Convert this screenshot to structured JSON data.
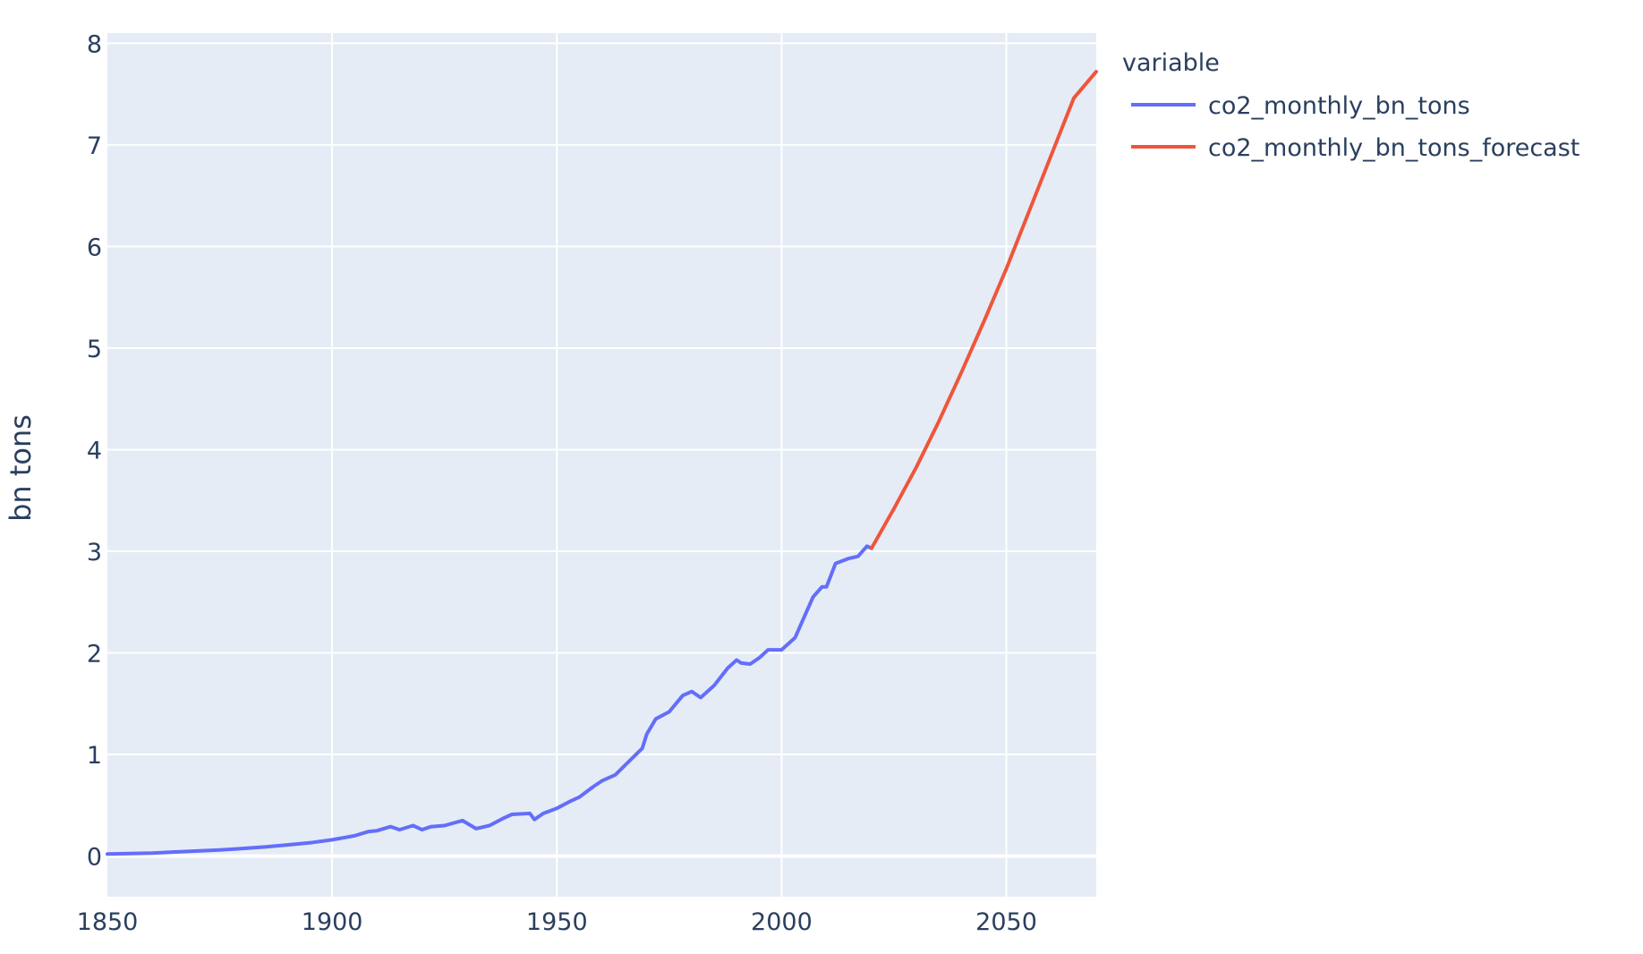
{
  "chart_data": {
    "type": "line",
    "title": "",
    "xlabel": "",
    "ylabel": "bn tons",
    "xlim": [
      1850,
      2070
    ],
    "ylim": [
      -0.4,
      8.1
    ],
    "x_ticks": [
      1850,
      1900,
      1950,
      2000,
      2050
    ],
    "y_ticks": [
      0,
      1,
      2,
      3,
      4,
      5,
      6,
      7,
      8
    ],
    "grid": true,
    "plot_background": "#E5ECF6",
    "legend": {
      "title": "variable",
      "position": "right"
    },
    "series": [
      {
        "name": "co2_monthly_bn_tons",
        "color": "#636EFA",
        "x": [
          1850,
          1855,
          1860,
          1865,
          1870,
          1875,
          1880,
          1885,
          1890,
          1895,
          1900,
          1905,
          1908,
          1910,
          1913,
          1915,
          1918,
          1920,
          1922,
          1925,
          1929,
          1932,
          1935,
          1938,
          1940,
          1944,
          1945,
          1947,
          1950,
          1953,
          1955,
          1958,
          1960,
          1963,
          1966,
          1969,
          1970,
          1972,
          1975,
          1978,
          1980,
          1982,
          1985,
          1988,
          1990,
          1991,
          1993,
          1995,
          1997,
          2000,
          2003,
          2005,
          2007,
          2009,
          2010,
          2012,
          2015,
          2017,
          2019,
          2020
        ],
        "y": [
          0.02,
          0.025,
          0.03,
          0.04,
          0.05,
          0.06,
          0.075,
          0.09,
          0.11,
          0.13,
          0.16,
          0.2,
          0.24,
          0.25,
          0.29,
          0.26,
          0.3,
          0.26,
          0.29,
          0.3,
          0.35,
          0.27,
          0.3,
          0.37,
          0.41,
          0.42,
          0.36,
          0.42,
          0.47,
          0.54,
          0.58,
          0.68,
          0.74,
          0.8,
          0.93,
          1.06,
          1.2,
          1.35,
          1.42,
          1.58,
          1.62,
          1.56,
          1.68,
          1.85,
          1.93,
          1.9,
          1.89,
          1.95,
          2.03,
          2.03,
          2.15,
          2.35,
          2.55,
          2.65,
          2.65,
          2.88,
          2.93,
          2.95,
          3.05,
          3.03
        ]
      },
      {
        "name": "co2_monthly_bn_tons_forecast",
        "color": "#EF553B",
        "x": [
          2020,
          2025,
          2030,
          2035,
          2040,
          2045,
          2050,
          2055,
          2060,
          2065,
          2070
        ],
        "y": [
          3.03,
          3.42,
          3.83,
          4.28,
          4.76,
          5.26,
          5.78,
          6.34,
          6.9,
          7.46,
          7.72
        ]
      }
    ]
  }
}
